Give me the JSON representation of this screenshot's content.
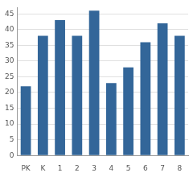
{
  "chart_data": {
    "type": "bar",
    "categories": [
      "PK",
      "K",
      "1",
      "2",
      "3",
      "4",
      "5",
      "6",
      "7",
      "8"
    ],
    "values": [
      22,
      38,
      43,
      38,
      46,
      23,
      28,
      36,
      42,
      38
    ],
    "color": "#336699",
    "ylim": [
      0,
      47
    ],
    "yticks": [
      0,
      5,
      10,
      15,
      20,
      25,
      30,
      35,
      40,
      45
    ],
    "grid": true
  }
}
